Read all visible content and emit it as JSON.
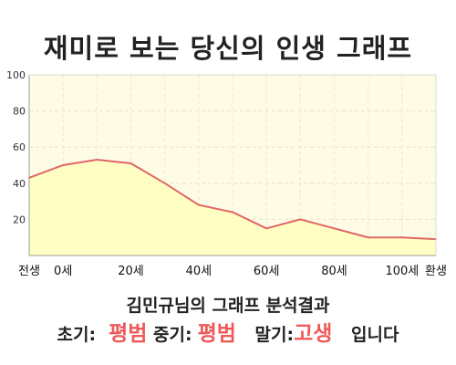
{
  "title": "재미로 보는 당신의 인생 그래프",
  "subtitle": "김민규님의 그래프 분석결과",
  "result": {
    "early_label": "초기:",
    "early_value": "평범",
    "mid_label": "중기:",
    "mid_value": "평범",
    "late_label": "말기:",
    "late_value": "고생",
    "ending": "입니다"
  },
  "colors": {
    "plot_background": "#fffce6",
    "area_fill": "#ffffc4",
    "line": "#e06666",
    "result_value": "#ee5a5a"
  },
  "chart_data": {
    "type": "area",
    "title": "재미로 보는 당신의 인생 그래프",
    "xlabel": "",
    "ylabel": "",
    "x": [
      "전생",
      "0세",
      "",
      "20세",
      "",
      "40세",
      "",
      "60세",
      "",
      "80세",
      "",
      "100세",
      "환생"
    ],
    "values": [
      43,
      50,
      53,
      51,
      40,
      28,
      24,
      15,
      20,
      15,
      10,
      10,
      9
    ],
    "xticks": [
      "전생",
      "0세",
      "20세",
      "40세",
      "60세",
      "80세",
      "100세",
      "환생"
    ],
    "yticks": [
      "20",
      "40",
      "60",
      "80",
      "100"
    ],
    "ylim": [
      0,
      100
    ],
    "grid": true,
    "legend": "none"
  }
}
